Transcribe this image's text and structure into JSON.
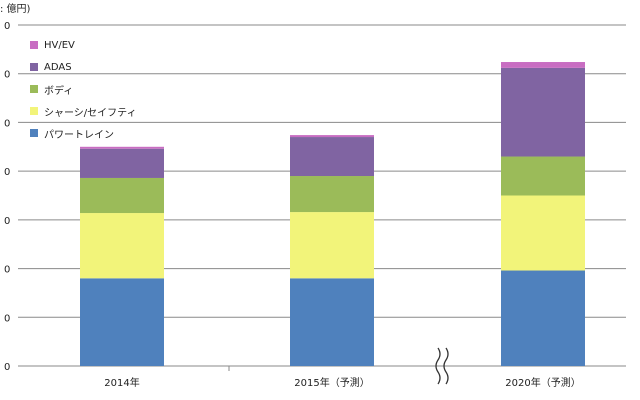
{
  "chart_data": {
    "type": "bar",
    "stacked": true,
    "unit_label": ": 億円)",
    "categories": [
      "2014年",
      "2015年（予測）",
      "2020年（予測）"
    ],
    "series": [
      {
        "name": "パワートレイン",
        "color": "#4f81bd",
        "values": [
          90,
          90,
          98
        ]
      },
      {
        "name": "シャーシ/セイフティ",
        "color": "#f2f47a",
        "values": [
          67,
          68,
          77
        ]
      },
      {
        "name": "ボディ",
        "color": "#9bbb59",
        "values": [
          36,
          37,
          40
        ]
      },
      {
        "name": "ADAS",
        "color": "#8064a2",
        "values": [
          30,
          40,
          91
        ]
      },
      {
        "name": "HV/EV",
        "color": "#c86dc2",
        "values": [
          2,
          2,
          6
        ]
      }
    ],
    "y_tick_labels": [
      "0",
      "0",
      "0",
      "0",
      "0",
      "0",
      "0",
      "0"
    ],
    "ylim": [
      0,
      350
    ],
    "grid": true,
    "legend_position": "top-left",
    "axis_break": "between 2015年（予測） and 2020年（予測）"
  }
}
